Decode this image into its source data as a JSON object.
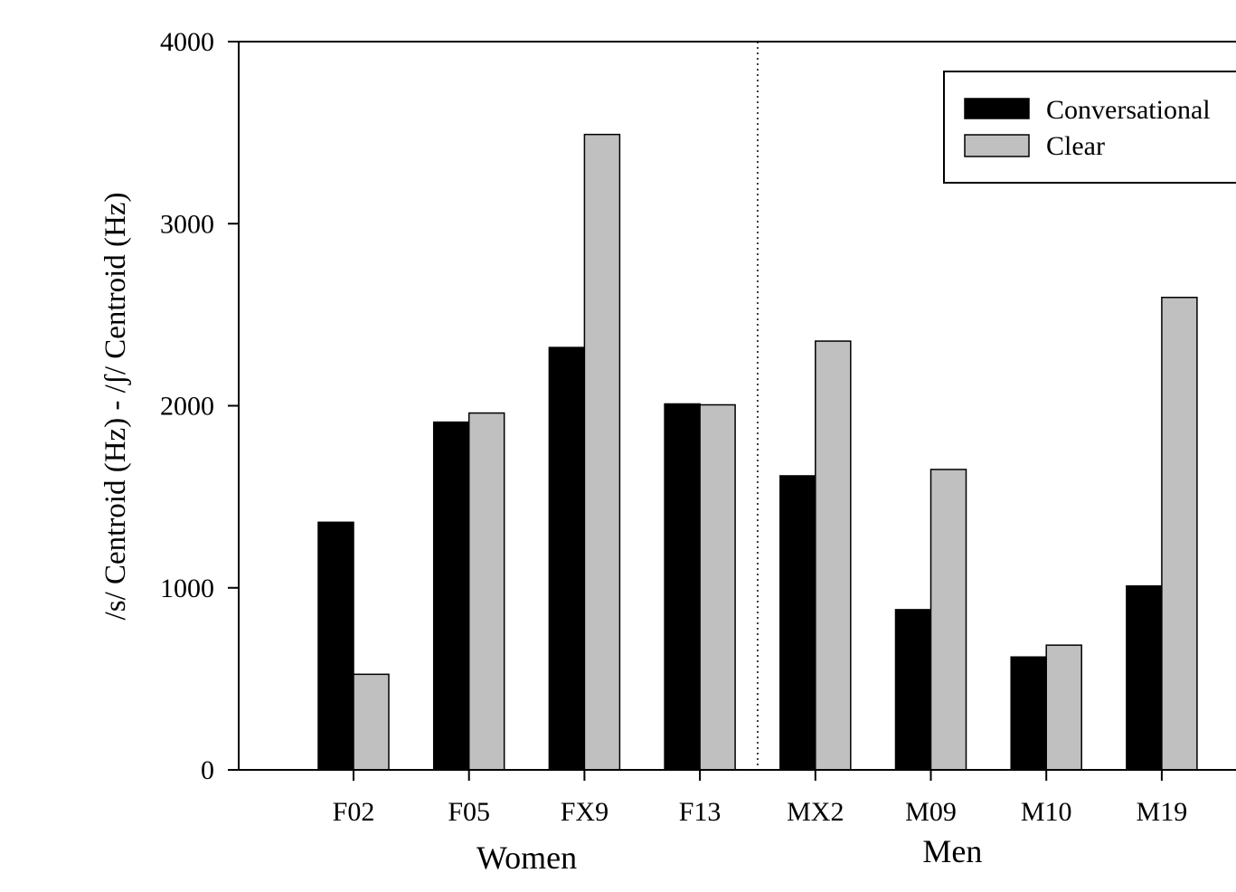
{
  "chart_data": {
    "type": "bar",
    "title": "",
    "ylabel": "/s/ Centroid (Hz) - /ʃ/ Centroid (Hz)",
    "xlabel": "",
    "ylim": [
      0,
      4000
    ],
    "yticks": [
      0,
      1000,
      2000,
      3000,
      4000
    ],
    "categories": [
      "F02",
      "F05",
      "FX9",
      "F13",
      "MX2",
      "M09",
      "M10",
      "M19"
    ],
    "groups": [
      {
        "label": "Women",
        "categories": [
          "F02",
          "F05",
          "FX9",
          "F13"
        ]
      },
      {
        "label": "Men",
        "categories": [
          "MX2",
          "M09",
          "M10",
          "M19"
        ]
      }
    ],
    "series": [
      {
        "name": "Conversational",
        "color": "#000000",
        "values": [
          1360,
          1910,
          2320,
          2010,
          1615,
          880,
          620,
          1010
        ]
      },
      {
        "name": "Clear",
        "color": "#c0c0c0",
        "values": [
          525,
          1960,
          3490,
          2005,
          2355,
          1650,
          685,
          2595
        ]
      }
    ],
    "legend": {
      "position": "top-right"
    },
    "grid": false,
    "divider": "dotted vertical line between Women and Men groups"
  }
}
